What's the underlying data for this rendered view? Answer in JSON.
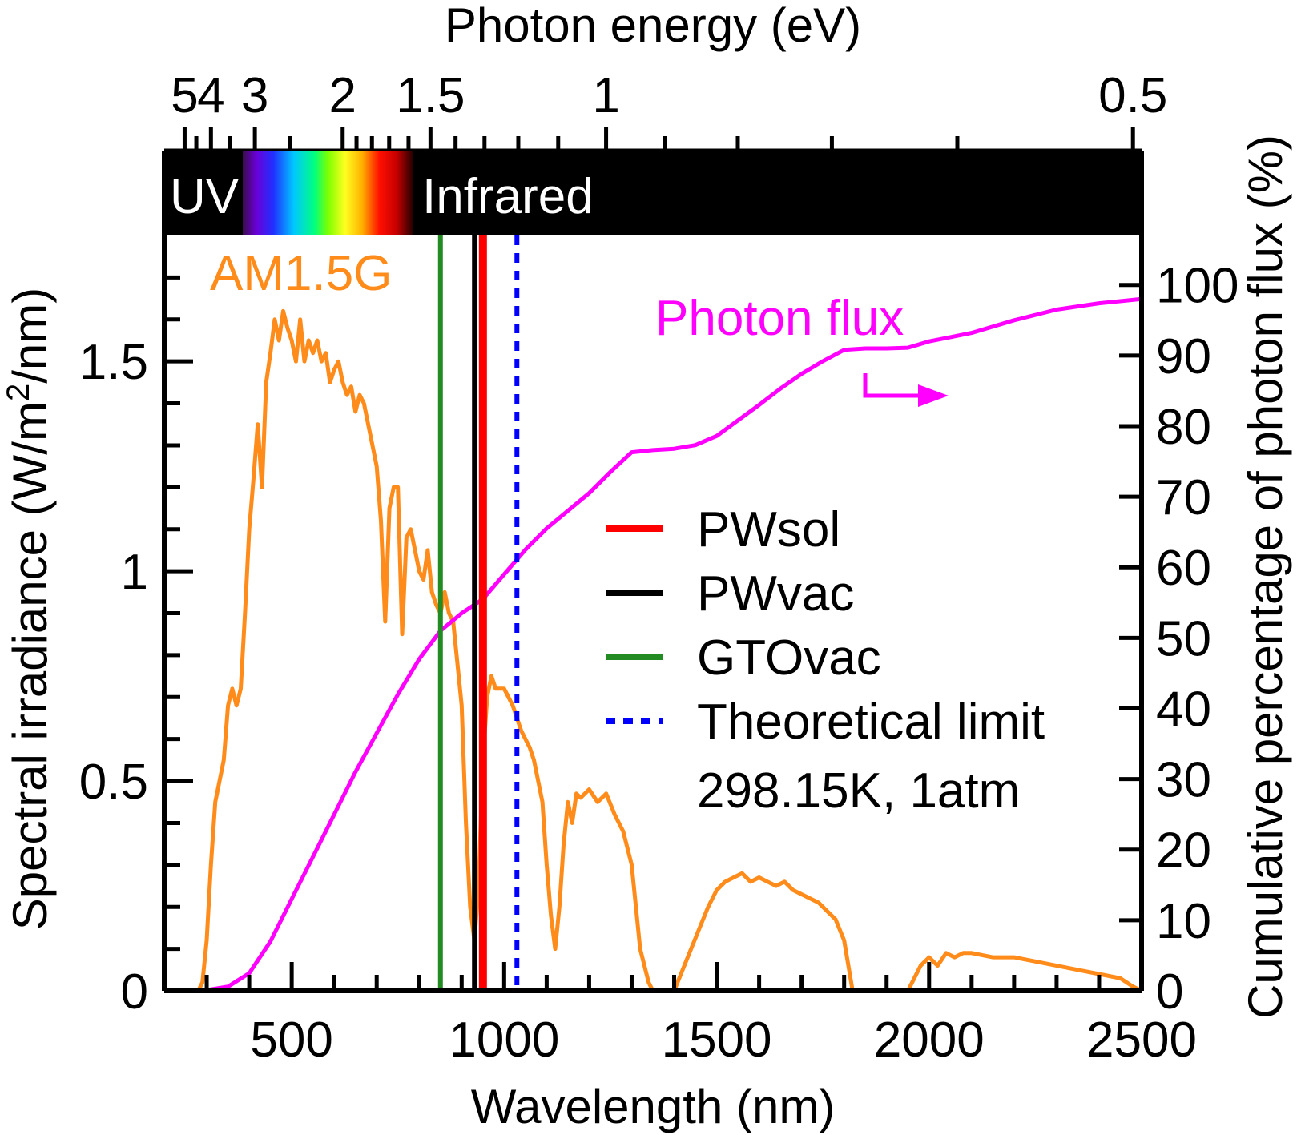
{
  "chart_data": {
    "type": "line",
    "x_axis": {
      "label": "Wavelength (nm)",
      "range": [
        200,
        2500
      ],
      "major_ticks": [
        500,
        1000,
        1500,
        2000,
        2500
      ],
      "tick_labels": [
        "500",
        "1000",
        "1500",
        "2000",
        "2500"
      ],
      "minor_step": 100
    },
    "top_axis": {
      "label": "Photon energy (eV)",
      "scale": "reciprocal",
      "labeled_ticks": [
        {
          "ev": 5,
          "text": "5"
        },
        {
          "ev": 4,
          "text": "4"
        },
        {
          "ev": 3,
          "text": "3"
        },
        {
          "ev": 2,
          "text": "2"
        },
        {
          "ev": 1.5,
          "text": "1.5"
        },
        {
          "ev": 1,
          "text": "1"
        },
        {
          "ev": 0.5,
          "text": "0.5"
        }
      ],
      "minor_ticks_ev": [
        4.5,
        3.5,
        2.5,
        1.9,
        1.8,
        1.7,
        1.6,
        1.4,
        1.3,
        1.2,
        1.1,
        0.9,
        0.8,
        0.7,
        0.6
      ]
    },
    "y_left": {
      "label": "Spectral irradiance (W/m2/nm)",
      "range": [
        0,
        1.8
      ],
      "major_ticks": [
        0,
        0.5,
        1,
        1.5
      ],
      "tick_labels": [
        "0",
        "0.5",
        "1",
        "1.5"
      ],
      "minor_step": 0.1
    },
    "y_right": {
      "label": "Cumulative percentage of photon flux (%)",
      "range": [
        0,
        107
      ],
      "ticks": [
        0,
        10,
        20,
        30,
        40,
        50,
        60,
        70,
        80,
        90,
        100
      ],
      "tick_labels": [
        "0",
        "10",
        "20",
        "30",
        "40",
        "50",
        "60",
        "70",
        "80",
        "90",
        "100"
      ]
    },
    "spectrum_band": {
      "uv_label": "UV",
      "ir_label": "Infrared",
      "visible_range_nm": [
        380,
        780
      ],
      "band_range_ev": [
        1.8,
        1.8
      ]
    },
    "series": [
      {
        "name": "AM1.5G",
        "axis": "left",
        "color": "#ff8c1a",
        "x": [
          280,
          290,
          300,
          310,
          320,
          330,
          340,
          350,
          360,
          370,
          380,
          390,
          400,
          410,
          420,
          430,
          440,
          450,
          460,
          470,
          480,
          490,
          500,
          510,
          520,
          530,
          540,
          550,
          560,
          570,
          580,
          590,
          600,
          610,
          620,
          630,
          640,
          650,
          660,
          670,
          680,
          690,
          700,
          710,
          720,
          730,
          740,
          750,
          760,
          770,
          780,
          790,
          800,
          810,
          820,
          830,
          840,
          850,
          860,
          870,
          880,
          890,
          900,
          910,
          920,
          930,
          940,
          950,
          960,
          970,
          980,
          990,
          1000,
          1010,
          1020,
          1030,
          1040,
          1050,
          1060,
          1070,
          1080,
          1090,
          1100,
          1110,
          1120,
          1130,
          1140,
          1150,
          1160,
          1170,
          1180,
          1200,
          1220,
          1240,
          1260,
          1280,
          1300,
          1320,
          1340,
          1350,
          1360,
          1380,
          1400,
          1420,
          1440,
          1460,
          1480,
          1500,
          1520,
          1540,
          1560,
          1580,
          1600,
          1620,
          1640,
          1660,
          1680,
          1700,
          1720,
          1740,
          1760,
          1780,
          1800,
          1820,
          1850,
          1900,
          1950,
          1970,
          1980,
          2000,
          2020,
          2040,
          2060,
          2080,
          2100,
          2150,
          2200,
          2250,
          2300,
          2350,
          2400,
          2450,
          2480,
          2500
        ],
        "y": [
          0.0,
          0.02,
          0.12,
          0.3,
          0.45,
          0.5,
          0.55,
          0.68,
          0.72,
          0.68,
          0.72,
          0.9,
          1.1,
          1.22,
          1.35,
          1.2,
          1.45,
          1.52,
          1.6,
          1.55,
          1.62,
          1.58,
          1.55,
          1.5,
          1.6,
          1.5,
          1.55,
          1.52,
          1.55,
          1.5,
          1.52,
          1.45,
          1.48,
          1.5,
          1.45,
          1.42,
          1.44,
          1.38,
          1.42,
          1.4,
          1.35,
          1.3,
          1.25,
          1.12,
          0.88,
          1.15,
          1.2,
          1.2,
          0.85,
          1.08,
          1.1,
          1.05,
          1.0,
          0.98,
          1.05,
          0.95,
          0.92,
          0.9,
          0.95,
          0.9,
          0.88,
          0.78,
          0.68,
          0.4,
          0.2,
          0.12,
          0.25,
          0.55,
          0.7,
          0.75,
          0.72,
          0.72,
          0.72,
          0.7,
          0.68,
          0.65,
          0.62,
          0.6,
          0.58,
          0.55,
          0.5,
          0.45,
          0.3,
          0.18,
          0.1,
          0.2,
          0.35,
          0.45,
          0.4,
          0.47,
          0.46,
          0.48,
          0.45,
          0.47,
          0.42,
          0.38,
          0.3,
          0.1,
          0.02,
          0.0,
          0.0,
          0.0,
          0.0,
          0.05,
          0.1,
          0.15,
          0.2,
          0.24,
          0.26,
          0.27,
          0.28,
          0.26,
          0.27,
          0.26,
          0.25,
          0.26,
          0.24,
          0.23,
          0.22,
          0.21,
          0.19,
          0.17,
          0.12,
          0.0,
          0.0,
          0.0,
          0.0,
          0.04,
          0.06,
          0.08,
          0.06,
          0.09,
          0.08,
          0.09,
          0.09,
          0.08,
          0.08,
          0.07,
          0.06,
          0.05,
          0.04,
          0.03,
          0.01,
          0.0
        ]
      },
      {
        "name": "Photon flux",
        "axis": "right",
        "color": "#ff00ff",
        "x": [
          280,
          300,
          350,
          400,
          450,
          500,
          550,
          600,
          650,
          700,
          750,
          800,
          850,
          900,
          950,
          1000,
          1050,
          1100,
          1150,
          1200,
          1250,
          1300,
          1350,
          1400,
          1450,
          1500,
          1550,
          1600,
          1650,
          1700,
          1750,
          1800,
          1850,
          1900,
          1950,
          2000,
          2050,
          2100,
          2200,
          2300,
          2400,
          2500
        ],
        "y": [
          0,
          0.1,
          0.6,
          2.5,
          7,
          13,
          19,
          25,
          31,
          36.5,
          42,
          47,
          51,
          53.5,
          55.5,
          59,
          62.5,
          65.5,
          68,
          70.5,
          73.5,
          76.3,
          76.6,
          76.8,
          77.3,
          78.6,
          80.8,
          83,
          85.3,
          87.4,
          89.2,
          90.8,
          91,
          91,
          91.1,
          92,
          92.6,
          93.2,
          95,
          96.5,
          97.4,
          98
        ]
      }
    ],
    "vlines": [
      {
        "name": "PWsol",
        "x": 950,
        "color": "#ff0000",
        "style": "solid"
      },
      {
        "name": "PWvac",
        "x": 930,
        "color": "#000000",
        "style": "solid"
      },
      {
        "name": "GTOvac",
        "x": 850,
        "color": "#228b22",
        "style": "solid"
      },
      {
        "name": "Theoretical limit",
        "x": 1030,
        "color": "#0000ff",
        "style": "dotted"
      }
    ],
    "annotations": {
      "am15g_label": "AM1.5G",
      "photon_flux_label": "Photon flux",
      "conditions_label": "298.15K, 1atm"
    },
    "legend_position": "center-right",
    "grid": false
  }
}
